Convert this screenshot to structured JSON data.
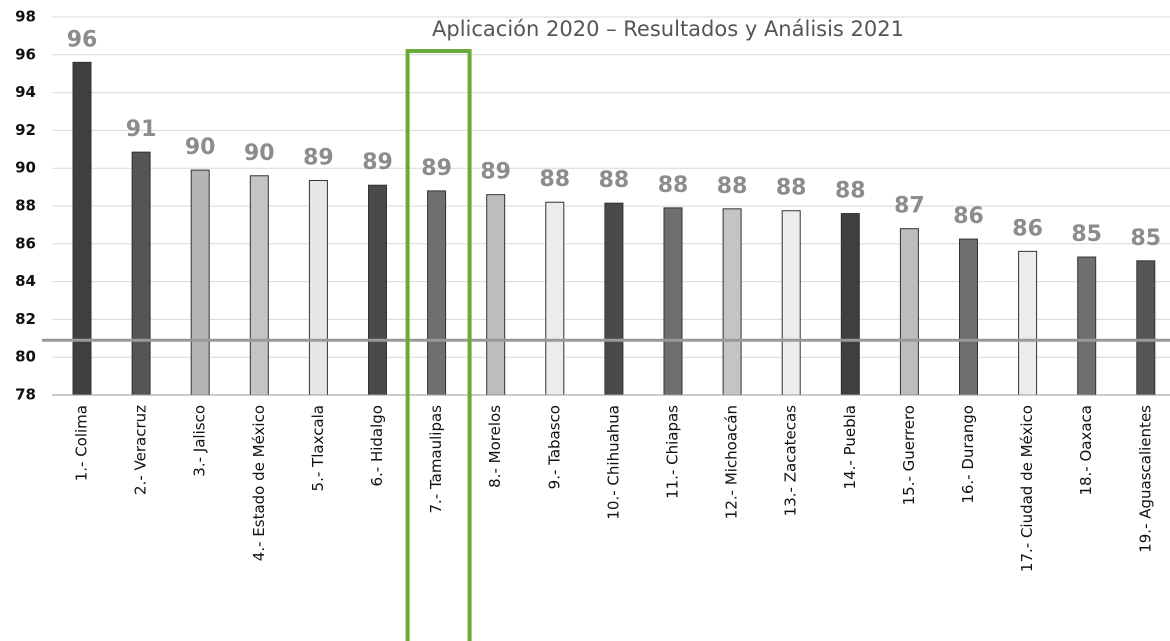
{
  "chart_data": {
    "type": "bar",
    "title": "Aplicación 2020 – Resultados y Análisis 2021",
    "categories": [
      "1.- Colima",
      "2.- Veracruz",
      "3.- Jalisco",
      "4.- Estado de México",
      "5.- Tlaxcala",
      "6.- Hidalgo",
      "7.- Tamaulipas",
      "8.- Morelos",
      "9.- Tabasco",
      "10.- Chihuahua",
      "11.- Chiapas",
      "12.- Michoacán",
      "13.- Zacatecas",
      "14.- Puebla",
      "15.- Guerrero",
      "16.- Durango",
      "17.- Ciudad de México",
      "18.- Oaxaca",
      "19.- Aguascalientes"
    ],
    "values": [
      95.6,
      90.85,
      89.9,
      89.6,
      89.35,
      89.1,
      88.8,
      88.6,
      88.2,
      88.15,
      87.9,
      87.85,
      87.75,
      87.6,
      86.8,
      86.25,
      85.6,
      85.3,
      85.1
    ],
    "value_labels": [
      "96",
      "91",
      "90",
      "90",
      "89",
      "89",
      "89",
      "89",
      "88",
      "88",
      "88",
      "88",
      "88",
      "88",
      "87",
      "86",
      "86",
      "85",
      "85"
    ],
    "colors": [
      "#3f3f3f",
      "#555555",
      "#b5b5b5",
      "#c4c4c4",
      "#e6e6e6",
      "#4a4a4a",
      "#6f6f6f",
      "#bdbdbd",
      "#ececec",
      "#4a4a4a",
      "#6f6f6f",
      "#c4c4c4",
      "#ececec",
      "#3f3f3f",
      "#bdbdbd",
      "#6f6f6f",
      "#ececec",
      "#6f6f6f",
      "#555555"
    ],
    "ylim": [
      78,
      98
    ],
    "yticks": [
      78,
      80,
      82,
      84,
      86,
      88,
      90,
      92,
      94,
      96,
      98
    ],
    "grid": true,
    "reference_line": 80.9,
    "highlight": 6
  }
}
